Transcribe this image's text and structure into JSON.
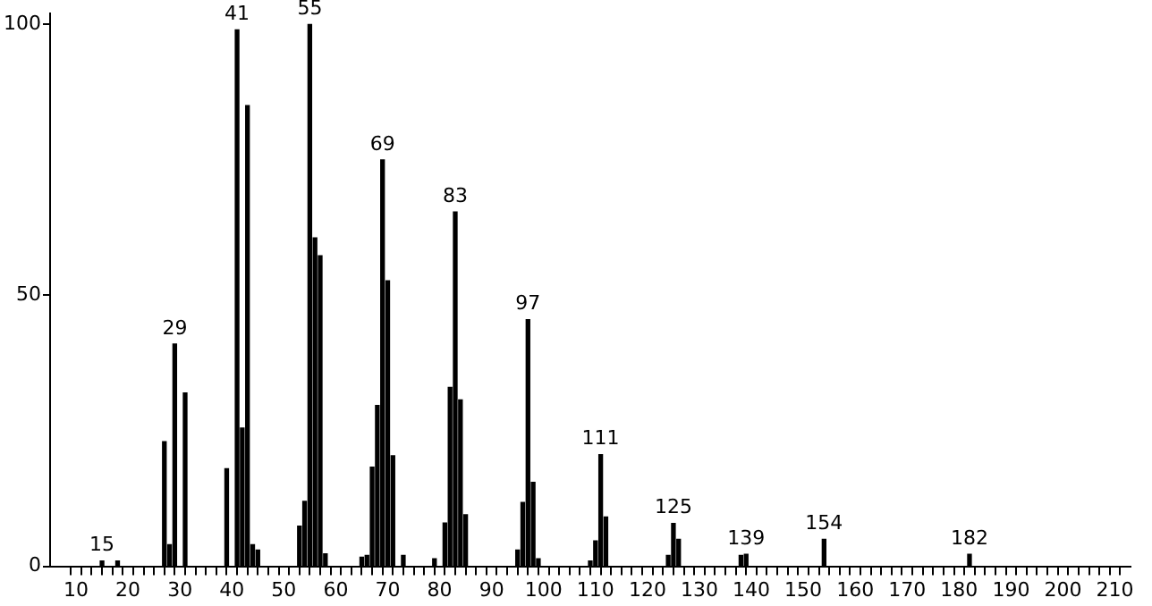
{
  "chart_data": {
    "type": "bar",
    "color": "#000000",
    "x": [
      15,
      18,
      27,
      28,
      29,
      31,
      39,
      41,
      42,
      43,
      44,
      45,
      53,
      54,
      55,
      56,
      57,
      58,
      65,
      66,
      67,
      68,
      69,
      70,
      71,
      73,
      79,
      81,
      82,
      83,
      84,
      85,
      95,
      96,
      97,
      98,
      99,
      109,
      110,
      111,
      112,
      124,
      125,
      126,
      138,
      139,
      154,
      182
    ],
    "values": [
      1,
      1,
      23,
      4,
      41,
      32,
      18,
      99,
      25.5,
      85,
      4,
      3,
      7.4,
      12,
      100,
      60.6,
      57.3,
      2.3,
      1.7,
      2,
      18.3,
      29.7,
      75,
      52.7,
      20.4,
      2,
      1.4,
      8,
      33,
      65.4,
      30.7,
      9.5,
      3,
      11.8,
      45.5,
      15.5,
      1.4,
      1,
      4.7,
      20.6,
      9.1,
      2,
      7.9,
      5,
      2,
      2.2,
      5,
      2.2
    ],
    "xlim": [
      5,
      213
    ],
    "xticks": [
      10,
      {
        "value": 12,
        "label": null
      },
      {
        "value": 14,
        "label": null
      },
      {
        "value": 16,
        "label": null
      },
      {
        "value": 18,
        "label": null
      },
      20,
      {
        "value": 22,
        "label": null
      },
      {
        "value": 24,
        "label": null
      },
      {
        "value": 26,
        "label": null
      },
      {
        "value": 28,
        "label": null
      },
      30,
      {
        "value": 32,
        "label": null
      },
      {
        "value": 34,
        "label": null
      },
      {
        "value": 36,
        "label": null
      },
      {
        "value": 38,
        "label": null
      },
      40,
      {
        "value": 42,
        "label": null
      },
      {
        "value": 44,
        "label": null
      },
      {
        "value": 46,
        "label": null
      },
      {
        "value": 48,
        "label": null
      },
      50,
      {
        "value": 52,
        "label": null
      },
      {
        "value": 54,
        "label": null
      },
      {
        "value": 56,
        "label": null
      },
      {
        "value": 58,
        "label": null
      },
      60,
      {
        "value": 62,
        "label": null
      },
      {
        "value": 64,
        "label": null
      },
      {
        "value": 66,
        "label": null
      },
      {
        "value": 68,
        "label": null
      },
      70,
      {
        "value": 72,
        "label": null
      },
      {
        "value": 74,
        "label": null
      },
      {
        "value": 76,
        "label": null
      },
      {
        "value": 78,
        "label": null
      },
      80,
      {
        "value": 82,
        "label": null
      },
      {
        "value": 84,
        "label": null
      },
      {
        "value": 86,
        "label": null
      },
      {
        "value": 88,
        "label": null
      },
      90,
      {
        "value": 92,
        "label": null
      },
      {
        "value": 94,
        "label": null
      },
      {
        "value": 96,
        "label": null
      },
      {
        "value": 98,
        "label": null
      },
      100,
      {
        "value": 102,
        "label": null
      },
      {
        "value": 104,
        "label": null
      },
      {
        "value": 106,
        "label": null
      },
      {
        "value": 108,
        "label": null
      },
      110,
      {
        "value": 112,
        "label": null
      },
      {
        "value": 114,
        "label": null
      },
      {
        "value": 116,
        "label": null
      },
      {
        "value": 118,
        "label": null
      },
      120,
      {
        "value": 122,
        "label": null
      },
      {
        "value": 124,
        "label": null
      },
      {
        "value": 126,
        "label": null
      },
      {
        "value": 128,
        "label": null
      },
      130,
      {
        "value": 132,
        "label": null
      },
      {
        "value": 134,
        "label": null
      },
      {
        "value": 136,
        "label": null
      },
      {
        "value": 138,
        "label": null
      },
      140,
      {
        "value": 142,
        "label": null
      },
      {
        "value": 144,
        "label": null
      },
      {
        "value": 146,
        "label": null
      },
      {
        "value": 148,
        "label": null
      },
      150,
      {
        "value": 152,
        "label": null
      },
      {
        "value": 154,
        "label": null
      },
      {
        "value": 156,
        "label": null
      },
      {
        "value": 158,
        "label": null
      },
      160,
      {
        "value": 162,
        "label": null
      },
      {
        "value": 164,
        "label": null
      },
      {
        "value": 166,
        "label": null
      },
      {
        "value": 168,
        "label": null
      },
      170,
      {
        "value": 172,
        "label": null
      },
      {
        "value": 174,
        "label": null
      },
      {
        "value": 176,
        "label": null
      },
      {
        "value": 178,
        "label": null
      },
      180,
      {
        "value": 182,
        "label": null
      },
      {
        "value": 184,
        "label": null
      },
      {
        "value": 186,
        "label": null
      },
      {
        "value": 188,
        "label": null
      },
      190,
      {
        "value": 192,
        "label": null
      },
      {
        "value": 194,
        "label": null
      },
      {
        "value": 196,
        "label": null
      },
      {
        "value": 198,
        "label": null
      },
      200,
      {
        "value": 202,
        "label": null
      },
      {
        "value": 204,
        "label": null
      },
      {
        "value": 206,
        "label": null
      },
      {
        "value": 208,
        "label": null
      },
      210
    ],
    "ylim": [
      0,
      102
    ],
    "yticks": [
      0,
      50,
      100
    ],
    "grid": false,
    "legend": false,
    "annotations": [
      {
        "text": "15",
        "x": 15,
        "y": 1
      },
      {
        "text": "29",
        "x": 29,
        "y": 41
      },
      {
        "text": "41",
        "x": 41,
        "y": 99
      },
      {
        "text": "55",
        "x": 55,
        "y": 100
      },
      {
        "text": "69",
        "x": 69,
        "y": 75
      },
      {
        "text": "83",
        "x": 83,
        "y": 65.4
      },
      {
        "text": "97",
        "x": 97,
        "y": 45.5
      },
      {
        "text": "111",
        "x": 111,
        "y": 20.6
      },
      {
        "text": "125",
        "x": 125,
        "y": 7.9
      },
      {
        "text": "139",
        "x": 139,
        "y": 2.2
      },
      {
        "text": "154",
        "x": 154,
        "y": 5
      },
      {
        "text": "182",
        "x": 182,
        "y": 2.2
      }
    ]
  }
}
